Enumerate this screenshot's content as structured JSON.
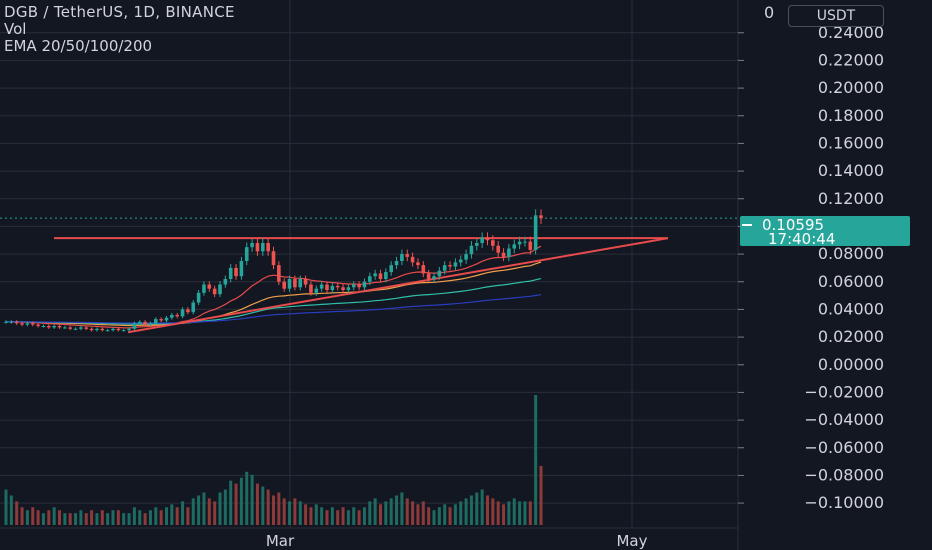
{
  "legend": {
    "title": "DGB / TetherUS, 1D, BINANCE",
    "vol": "Vol",
    "ema": "EMA 20/50/100/200"
  },
  "currency_label": "USDT",
  "last_price": {
    "value": "0.10595",
    "countdown": "17:40:44"
  },
  "colors": {
    "background": "#131722",
    "up": "#26a69a",
    "down": "#ef5350",
    "vol_up": "#1e6b62",
    "vol_down": "#8c3a3a",
    "ema20": "#e84b4b",
    "ema50": "#f0a04b",
    "ema100": "#2fbfa8",
    "ema200": "#2b3cbf",
    "trendline": "#e84b4b",
    "grid": "#2a2e39",
    "text": "#d1d4dc"
  },
  "chart_data": {
    "type": "candlestick",
    "title": "DGB / TetherUS, 1D, BINANCE",
    "y_axis_ticks": [
      "0.24000",
      "0.22000",
      "0.20000",
      "0.18000",
      "0.16000",
      "0.14000",
      "0.12000",
      "0.10000",
      "0.08000",
      "0.06000",
      "0.04000",
      "0.02000",
      "0.00000",
      "−0.02000",
      "−0.04000",
      "−0.06000",
      "−0.08000",
      "−0.10000"
    ],
    "ylim": [
      -0.105,
      0.255
    ],
    "x_axis_labels": [
      "Mar",
      "May"
    ],
    "grid": true,
    "last_price": 0.10595,
    "close": [
      0.031,
      0.031,
      0.03,
      0.029,
      0.03,
      0.029,
      0.028,
      0.028,
      0.027,
      0.028,
      0.027,
      0.027,
      0.026,
      0.026,
      0.027,
      0.026,
      0.025,
      0.026,
      0.025,
      0.025,
      0.026,
      0.025,
      0.025,
      0.026,
      0.03,
      0.031,
      0.029,
      0.03,
      0.033,
      0.032,
      0.034,
      0.036,
      0.035,
      0.04,
      0.038,
      0.045,
      0.052,
      0.058,
      0.055,
      0.051,
      0.058,
      0.062,
      0.07,
      0.064,
      0.075,
      0.085,
      0.088,
      0.082,
      0.088,
      0.082,
      0.072,
      0.06,
      0.055,
      0.062,
      0.056,
      0.062,
      0.058,
      0.052,
      0.055,
      0.058,
      0.054,
      0.057,
      0.056,
      0.054,
      0.056,
      0.058,
      0.056,
      0.06,
      0.064,
      0.066,
      0.062,
      0.067,
      0.072,
      0.075,
      0.08,
      0.078,
      0.074,
      0.072,
      0.066,
      0.062,
      0.064,
      0.068,
      0.072,
      0.071,
      0.074,
      0.076,
      0.08,
      0.086,
      0.088,
      0.092,
      0.09,
      0.086,
      0.081,
      0.078,
      0.084,
      0.087,
      0.089,
      0.089,
      0.083,
      0.108,
      0.106
    ],
    "volume": [
      12,
      10,
      8,
      6,
      5,
      6,
      5,
      4,
      5,
      6,
      5,
      4,
      4,
      4,
      5,
      4,
      5,
      4,
      5,
      4,
      5,
      5,
      4,
      4,
      6,
      5,
      4,
      5,
      6,
      5,
      6,
      7,
      6,
      8,
      6,
      9,
      10,
      11,
      9,
      8,
      11,
      12,
      15,
      14,
      16,
      18,
      17,
      14,
      13,
      12,
      10,
      11,
      9,
      8,
      9,
      8,
      7,
      6,
      7,
      6,
      5,
      6,
      5,
      6,
      5,
      6,
      5,
      6,
      8,
      9,
      7,
      8,
      9,
      10,
      11,
      9,
      8,
      7,
      8,
      6,
      5,
      6,
      7,
      6,
      7,
      8,
      9,
      10,
      11,
      12,
      10,
      9,
      8,
      7,
      8,
      9,
      8,
      8,
      8,
      44,
      20
    ]
  }
}
